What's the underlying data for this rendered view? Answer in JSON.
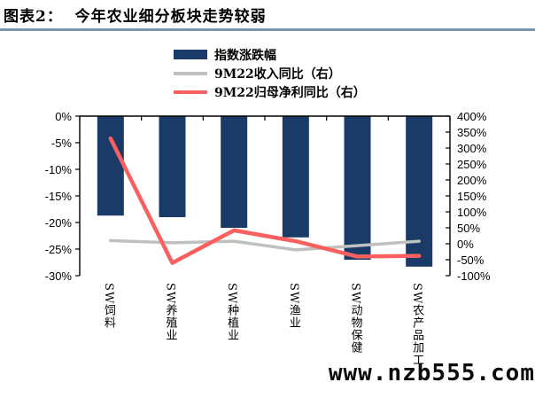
{
  "header": {
    "title": "图表2：  今年农业细分板块走势较弱"
  },
  "watermark": {
    "text": "www.nzb555.com"
  },
  "colors": {
    "bar": "#1A3A68",
    "revenue_line": "#C0C0C0",
    "profit_line": "#FA6060",
    "title_rule": "#7A95AC",
    "axis": "#000000"
  },
  "chart_data": {
    "type": "bar",
    "subtype": "bar-line-combo",
    "categories": [
      "SW饲料",
      "SW养殖业",
      "SW种植业",
      "SW渔业",
      "SW动物保健",
      "SW农产品加工"
    ],
    "series": [
      {
        "name": "指数涨跌幅",
        "type": "bar",
        "axis": "left",
        "color": "#1A3A68",
        "values": [
          -18.7,
          -19,
          -21,
          -22.8,
          -27,
          -28.3
        ]
      },
      {
        "name": "9M22收入同比（右）",
        "type": "line",
        "axis": "right",
        "color": "#C0C0C0",
        "values": [
          10,
          3,
          8,
          -19,
          -6,
          8
        ]
      },
      {
        "name": "9M22归母净利同比（右）",
        "type": "line",
        "axis": "right",
        "color": "#FA6060",
        "values": [
          330,
          -60,
          42,
          8,
          -40,
          -38
        ]
      }
    ],
    "left_axis": {
      "max": 0,
      "min": -30,
      "step": -5,
      "ticks": [
        "0%",
        "-5%",
        "-10%",
        "-15%",
        "-20%",
        "-25%",
        "-30%"
      ]
    },
    "right_axis": {
      "max": 400,
      "min": -100,
      "step": -50,
      "ticks": [
        "400%",
        "350%",
        "300%",
        "250%",
        "200%",
        "150%",
        "100%",
        "50%",
        "0%",
        "-50%",
        "-100%"
      ]
    },
    "grid": false,
    "legend_position": "top-center",
    "title": "图表2：今年农业细分板块走势较弱",
    "xlabel": "",
    "ylabel_left": "",
    "ylabel_right": ""
  }
}
